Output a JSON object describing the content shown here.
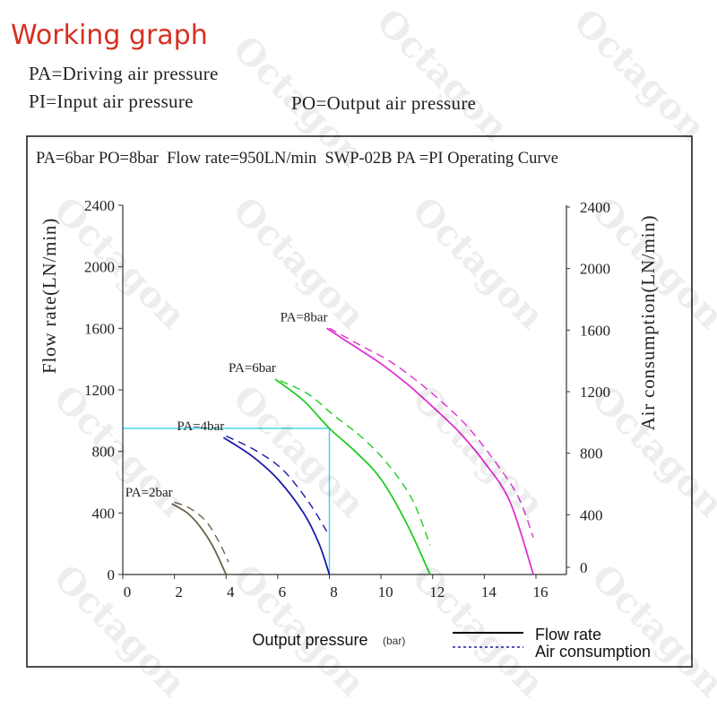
{
  "header": {
    "title": "Working graph",
    "def_pa": "PA=Driving air pressure",
    "def_pi": "PI=Input air pressure",
    "def_po": "PO=Output air pressure",
    "title_color": "#d7301f"
  },
  "watermark": "Octagon",
  "chart_data": {
    "type": "line",
    "caption": "PA=6bar PO=8bar  Flow rate=950LN/min  SWP-02B PA =PI Operating Curve",
    "xlabel": "Output pressure",
    "xunit": "(bar)",
    "ylabel": "Flow rate(LN/min)",
    "y2label": "Air consumption(LN/min)",
    "xlim": [
      0,
      16
    ],
    "ylim": [
      0,
      2400
    ],
    "x_ticks": [
      "0",
      "2",
      "4",
      "6",
      "8",
      "10",
      "12",
      "14",
      "16"
    ],
    "y_ticks": [
      "0",
      "400",
      "800",
      "1200",
      "1600",
      "2000",
      "2400"
    ],
    "legend": {
      "flow": "Flow rate",
      "air": "Air consumption"
    },
    "marker": {
      "x": 8,
      "y": 950
    },
    "series": [
      {
        "label": "PA=2bar",
        "color": "#6b6448",
        "flow": [
          [
            1.9,
            460
          ],
          [
            2.5,
            400
          ],
          [
            3.0,
            310
          ],
          [
            3.5,
            180
          ],
          [
            4.0,
            0
          ]
        ],
        "air": [
          [
            2.0,
            470
          ],
          [
            2.6,
            430
          ],
          [
            3.2,
            350
          ],
          [
            3.7,
            220
          ],
          [
            4.1,
            80
          ]
        ]
      },
      {
        "label": "PA=4bar",
        "color": "#1a1aa8",
        "flow": [
          [
            3.9,
            890
          ],
          [
            5.0,
            770
          ],
          [
            6.0,
            620
          ],
          [
            7.0,
            400
          ],
          [
            7.6,
            200
          ],
          [
            8.0,
            0
          ]
        ],
        "air": [
          [
            4.0,
            900
          ],
          [
            5.1,
            810
          ],
          [
            6.2,
            680
          ],
          [
            7.2,
            470
          ],
          [
            7.9,
            280
          ]
        ]
      },
      {
        "label": "PA=6bar",
        "color": "#22cc22",
        "flow": [
          [
            5.9,
            1270
          ],
          [
            7.0,
            1130
          ],
          [
            8.0,
            950
          ],
          [
            9.0,
            800
          ],
          [
            10.0,
            620
          ],
          [
            11.0,
            330
          ],
          [
            11.9,
            0
          ]
        ],
        "air": [
          [
            6.1,
            1260
          ],
          [
            7.2,
            1170
          ],
          [
            8.2,
            1030
          ],
          [
            9.2,
            900
          ],
          [
            10.2,
            730
          ],
          [
            11.2,
            490
          ],
          [
            11.9,
            190
          ]
        ]
      },
      {
        "label": "PA=8bar",
        "color": "#e030d0",
        "flow": [
          [
            7.9,
            1600
          ],
          [
            9.0,
            1480
          ],
          [
            10.0,
            1370
          ],
          [
            11.0,
            1240
          ],
          [
            12.0,
            1090
          ],
          [
            13.0,
            930
          ],
          [
            14.0,
            730
          ],
          [
            15.0,
            470
          ],
          [
            15.9,
            0
          ]
        ],
        "air": [
          [
            8.0,
            1600
          ],
          [
            9.2,
            1490
          ],
          [
            10.3,
            1390
          ],
          [
            11.3,
            1270
          ],
          [
            12.3,
            1130
          ],
          [
            13.3,
            970
          ],
          [
            14.3,
            760
          ],
          [
            15.3,
            510
          ],
          [
            15.9,
            240
          ]
        ]
      }
    ]
  }
}
